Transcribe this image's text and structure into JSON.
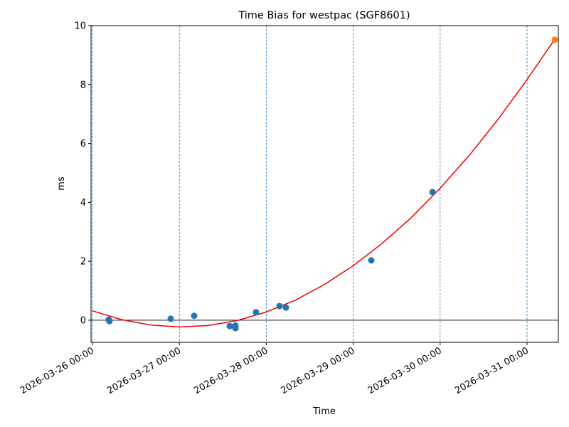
{
  "chart_data": {
    "type": "scatter",
    "title": "Time Bias for westpac (SGF8601)",
    "xlabel": "Time",
    "ylabel": "ms",
    "xlim": [
      "2026-03-25 23:37",
      "2026-03-31 08:38"
    ],
    "xticks": [
      "2026-03-26 00:00",
      "2026-03-27 00:00",
      "2026-03-28 00:00",
      "2026-03-29 00:00",
      "2026-03-30 00:00",
      "2026-03-31 00:00"
    ],
    "ylim": [
      -0.75,
      10
    ],
    "yticks": [
      0,
      2,
      4,
      6,
      8,
      10
    ],
    "xgrid": true,
    "grid_color": "#1f77b4",
    "hline": 0,
    "series": [
      {
        "kind": "line",
        "color": "#ee0000",
        "x": [
          "2026-03-26 00:00",
          "2026-03-26 08:00",
          "2026-03-26 16:00",
          "2026-03-27 00:00",
          "2026-03-27 08:00",
          "2026-03-27 16:00",
          "2026-03-28 00:00",
          "2026-03-28 08:00",
          "2026-03-28 16:00",
          "2026-03-29 00:00",
          "2026-03-29 08:00",
          "2026-03-29 16:00",
          "2026-03-30 00:00",
          "2026-03-30 08:00",
          "2026-03-30 16:00",
          "2026-03-31 00:00",
          "2026-03-31 08:00"
        ],
        "values": [
          0.32,
          0.02,
          -0.16,
          -0.23,
          -0.18,
          -0.01,
          0.28,
          0.68,
          1.21,
          1.85,
          2.61,
          3.48,
          4.48,
          5.59,
          6.82,
          8.17,
          9.6
        ]
      },
      {
        "kind": "scatter",
        "color": "#1f77b4",
        "x": [
          "2026-03-26 04:30",
          "2026-03-26 04:43",
          "2026-03-26 21:36",
          "2026-03-27 04:05",
          "2026-03-27 13:55",
          "2026-03-27 15:29",
          "2026-03-27 15:29",
          "2026-03-27 21:10",
          "2026-03-28 03:39",
          "2026-03-28 05:25",
          "2026-03-29 05:00",
          "2026-03-29 21:53"
        ],
        "values": [
          0.02,
          -0.03,
          0.05,
          0.15,
          -0.2,
          -0.18,
          -0.27,
          0.27,
          0.48,
          0.43,
          2.03,
          4.35
        ]
      },
      {
        "kind": "scatter",
        "color": "#ff7f0e",
        "x": [
          "2026-03-31 07:40"
        ],
        "values": [
          9.52
        ]
      }
    ]
  }
}
